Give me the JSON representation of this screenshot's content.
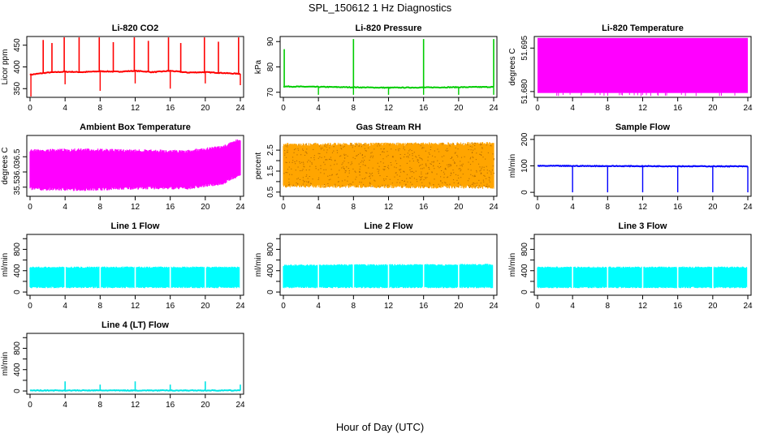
{
  "main_title": "SPL_150612  1 Hz Diagnostics",
  "xlabel": "Hour of Day (UTC)",
  "chart_data": [
    {
      "type": "line",
      "title": "Li-820 CO2",
      "ylabel": "Licor ppm",
      "color": "#ff0000",
      "xlim": [
        0,
        24
      ],
      "ylim": [
        330,
        470
      ],
      "x_ticks": [
        0,
        4,
        8,
        12,
        16,
        20,
        24
      ],
      "y_ticks": [
        350,
        400,
        450
      ],
      "series": [
        {
          "base": [
            [
              0,
              382
            ],
            [
              2,
              387
            ],
            [
              4,
              389
            ],
            [
              6,
              388
            ],
            [
              8,
              390
            ],
            [
              10,
              389
            ],
            [
              12,
              391
            ],
            [
              14,
              388
            ],
            [
              16,
              391
            ],
            [
              18,
              387
            ],
            [
              20,
              388
            ],
            [
              22,
              386
            ],
            [
              24,
              384
            ]
          ],
          "spikes": [
            [
              1.5,
              462
            ],
            [
              2.5,
              455
            ],
            [
              3.9,
              470
            ],
            [
              5.6,
              468
            ],
            [
              7.9,
              468
            ],
            [
              9.5,
              457
            ],
            [
              11.9,
              470
            ],
            [
              13.5,
              460
            ],
            [
              15.8,
              468
            ],
            [
              17.2,
              455
            ],
            [
              19.9,
              468
            ],
            [
              21.5,
              458
            ],
            [
              23.8,
              468
            ]
          ],
          "dips": [
            [
              0.1,
              330
            ],
            [
              4.0,
              360
            ],
            [
              8.0,
              345
            ],
            [
              12.0,
              362
            ],
            [
              16.0,
              350
            ],
            [
              20.0,
              362
            ],
            [
              24.0,
              358
            ]
          ]
        }
      ]
    },
    {
      "type": "line",
      "title": "Li-820 Pressure",
      "ylabel": "kPa",
      "color": "#00cc00",
      "xlim": [
        0,
        24
      ],
      "ylim": [
        68,
        92
      ],
      "x_ticks": [
        0,
        4,
        8,
        12,
        16,
        20,
        24
      ],
      "y_ticks": [
        70,
        80,
        90
      ],
      "series": [
        {
          "base": [
            [
              0,
              72.3
            ],
            [
              12,
              71.8
            ],
            [
              24,
              72.1
            ]
          ],
          "spikes": [
            [
              0.1,
              87
            ],
            [
              8.0,
              91
            ],
            [
              16.0,
              91
            ],
            [
              24.0,
              91
            ]
          ],
          "dips": [
            [
              4.0,
              69
            ],
            [
              8.0,
              69
            ],
            [
              12.0,
              69
            ],
            [
              16.0,
              69
            ],
            [
              20.0,
              69
            ],
            [
              24.0,
              69
            ]
          ]
        }
      ]
    },
    {
      "type": "area",
      "title": "Li-820 Temperature",
      "ylabel": "degrees C",
      "color": "#ff00ff",
      "xlim": [
        0,
        24
      ],
      "ylim": [
        51.678,
        51.699
      ],
      "x_ticks": [
        0,
        4,
        8,
        12,
        16,
        20,
        24
      ],
      "y_ticks": [
        51.68,
        51.695
      ],
      "y_tick_labels": [
        "51.680",
        "51.695"
      ],
      "series": [
        {
          "band": [
            51.6795,
            51.6985
          ]
        }
      ]
    },
    {
      "type": "area",
      "title": "Ambient Box Temperature",
      "ylabel": "degrees C",
      "color": "#ff00ff",
      "xlim": [
        0,
        24
      ],
      "ylim": [
        35.2,
        37.2
      ],
      "x_ticks": [
        0,
        4,
        8,
        12,
        16,
        20,
        24
      ],
      "y_ticks": [
        35.5,
        36.0,
        36.5
      ],
      "y_tick_labels": [
        "35.5",
        "36.0",
        "36.5"
      ],
      "series": [
        {
          "lower": [
            [
              0,
              35.42
            ],
            [
              6,
              35.4
            ],
            [
              12,
              35.45
            ],
            [
              18,
              35.45
            ],
            [
              22,
              35.6
            ],
            [
              24,
              35.9
            ]
          ],
          "upper": [
            [
              0,
              36.72
            ],
            [
              6,
              36.75
            ],
            [
              12,
              36.72
            ],
            [
              18,
              36.7
            ],
            [
              22,
              36.85
            ],
            [
              24,
              37.1
            ]
          ]
        }
      ]
    },
    {
      "type": "area",
      "title": "Gas Stream RH",
      "ylabel": "percent",
      "color": "#ffa500",
      "xlim": [
        0,
        24
      ],
      "ylim": [
        0.3,
        3.2
      ],
      "x_ticks": [
        0,
        4,
        8,
        12,
        16,
        20,
        24
      ],
      "y_ticks": [
        0.5,
        1.0,
        1.5,
        2.0,
        2.5
      ],
      "y_tick_labels": [
        "0.5",
        "1.5",
        "2.5"
      ],
      "y_tick_label_values": [
        0.5,
        1.5,
        2.5
      ],
      "series": [
        {
          "lower": [
            [
              0,
              0.75
            ],
            [
              24,
              0.7
            ]
          ],
          "upper": [
            [
              0,
              2.8
            ],
            [
              24,
              2.85
            ]
          ]
        }
      ]
    },
    {
      "type": "line",
      "title": "Sample Flow",
      "ylabel": "ml/min",
      "color": "#0000ff",
      "xlim": [
        0,
        24
      ],
      "ylim": [
        -15,
        215
      ],
      "x_ticks": [
        0,
        4,
        8,
        12,
        16,
        20,
        24
      ],
      "y_ticks": [
        0,
        100,
        200
      ],
      "series": [
        {
          "base": [
            [
              0,
              100
            ],
            [
              24,
              98
            ]
          ],
          "dips": [
            [
              4.0,
              0
            ],
            [
              8.0,
              0
            ],
            [
              12.0,
              0
            ],
            [
              16.0,
              0
            ],
            [
              20.0,
              0
            ],
            [
              24.0,
              0
            ]
          ]
        }
      ]
    },
    {
      "type": "area",
      "title": "Line 1 Flow",
      "ylabel": "ml/min",
      "color": "#00ffff",
      "xlim": [
        0,
        24
      ],
      "ylim": [
        -60,
        1080
      ],
      "x_ticks": [
        0,
        4,
        8,
        12,
        16,
        20,
        24
      ],
      "y_ticks": [
        0,
        200,
        400,
        600,
        800,
        1000
      ],
      "y_tick_labels": [
        "0",
        "400",
        "800"
      ],
      "y_tick_label_values": [
        0,
        400,
        800
      ],
      "series": [
        {
          "lower": [
            [
              0,
              80
            ],
            [
              24,
              80
            ]
          ],
          "upper": [
            [
              0,
              470
            ],
            [
              24,
              470
            ]
          ],
          "gaps": [
            4,
            8,
            12,
            16,
            20,
            24
          ]
        }
      ]
    },
    {
      "type": "area",
      "title": "Line 2 Flow",
      "ylabel": "ml/min",
      "color": "#00ffff",
      "xlim": [
        0,
        24
      ],
      "ylim": [
        -60,
        1080
      ],
      "x_ticks": [
        0,
        4,
        8,
        12,
        16,
        20,
        24
      ],
      "y_ticks": [
        0,
        200,
        400,
        600,
        800,
        1000
      ],
      "y_tick_labels": [
        "0",
        "400",
        "800"
      ],
      "y_tick_label_values": [
        0,
        400,
        800
      ],
      "series": [
        {
          "lower": [
            [
              0,
              80
            ],
            [
              24,
              80
            ]
          ],
          "upper": [
            [
              0,
              510
            ],
            [
              24,
              520
            ]
          ],
          "gaps": [
            4,
            8,
            12,
            16,
            20,
            24
          ]
        }
      ]
    },
    {
      "type": "area",
      "title": "Line 3 Flow",
      "ylabel": "ml/min",
      "color": "#00ffff",
      "xlim": [
        0,
        24
      ],
      "ylim": [
        -60,
        1080
      ],
      "x_ticks": [
        0,
        4,
        8,
        12,
        16,
        20,
        24
      ],
      "y_ticks": [
        0,
        200,
        400,
        600,
        800,
        1000
      ],
      "y_tick_labels": [
        "0",
        "400",
        "800"
      ],
      "y_tick_label_values": [
        0,
        400,
        800
      ],
      "series": [
        {
          "lower": [
            [
              0,
              80
            ],
            [
              24,
              80
            ]
          ],
          "upper": [
            [
              0,
              470
            ],
            [
              24,
              470
            ]
          ],
          "gaps": [
            4,
            8,
            12,
            16,
            20,
            24
          ]
        }
      ]
    },
    {
      "type": "line",
      "title": "Line 4 (LT) Flow",
      "ylabel": "ml/min",
      "color": "#00e5e5",
      "xlim": [
        0,
        24
      ],
      "ylim": [
        -60,
        1080
      ],
      "x_ticks": [
        0,
        4,
        8,
        12,
        16,
        20,
        24
      ],
      "y_ticks": [
        0,
        200,
        400,
        600,
        800,
        1000
      ],
      "y_tick_labels": [
        "0",
        "400",
        "800"
      ],
      "y_tick_label_values": [
        0,
        400,
        800
      ],
      "series": [
        {
          "base": [
            [
              0,
              10
            ],
            [
              24,
              10
            ]
          ],
          "spikes": [
            [
              4.0,
              180
            ],
            [
              8.0,
              120
            ],
            [
              12.0,
              180
            ],
            [
              16.0,
              120
            ],
            [
              20.0,
              180
            ],
            [
              24.0,
              120
            ]
          ]
        }
      ]
    }
  ]
}
